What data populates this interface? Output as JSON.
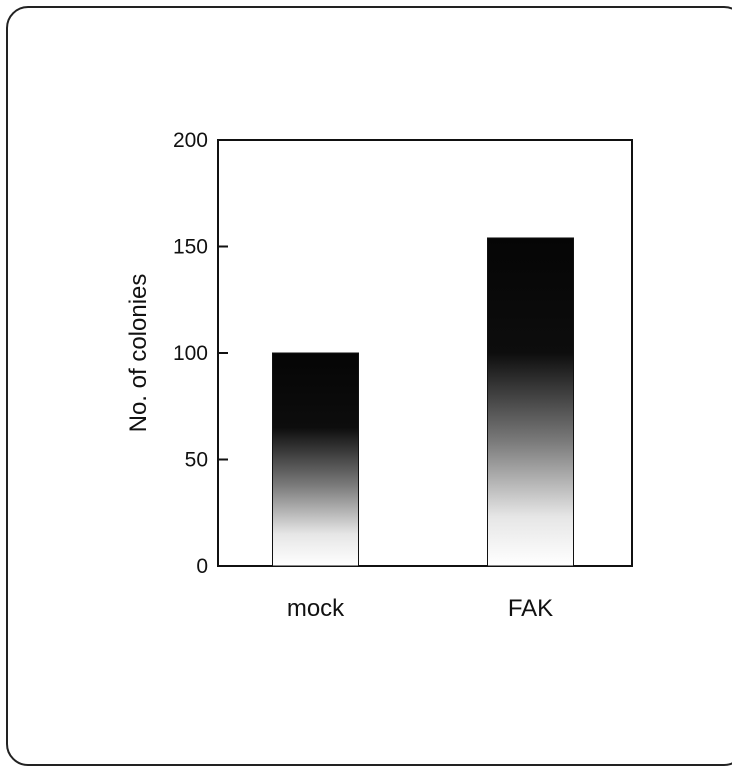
{
  "chart_data": {
    "type": "bar",
    "categories": [
      "mock",
      "FAK"
    ],
    "values": [
      100,
      154
    ],
    "title": "",
    "xlabel": "",
    "ylabel": "No. of colonies",
    "ylim": [
      0,
      200
    ],
    "yticks": [
      0,
      50,
      100,
      150,
      200
    ],
    "grid": false,
    "legend": "none",
    "bar_fill": "gradient-dark-top",
    "colors": {
      "dark": "#0a0a0a",
      "light": "#ffffff",
      "axis": "#111111"
    }
  }
}
